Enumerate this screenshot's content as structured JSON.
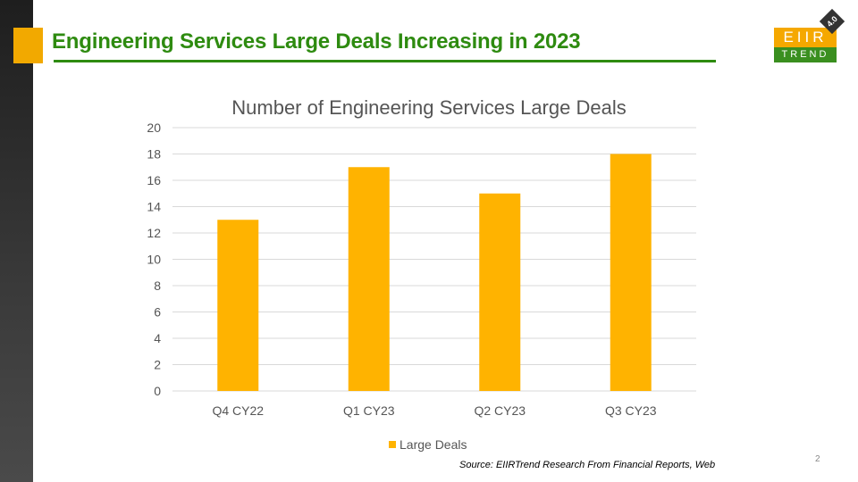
{
  "slide": {
    "title": "Engineering Services Large Deals Increasing in 2023",
    "source": "Source: EIIRTrend Research From Financial Reports, Web",
    "page_number": "2"
  },
  "logo": {
    "top_text": "EIIR",
    "bottom_text": "TREND",
    "version": "4.0"
  },
  "colors": {
    "accent": "#f2a900",
    "title_green": "#2e8b10",
    "bar": "#ffb300"
  },
  "chart_data": {
    "type": "bar",
    "title": "Number of Engineering Services Large Deals",
    "categories": [
      "Q4 CY22",
      "Q1 CY23",
      "Q2 CY23",
      "Q3 CY23"
    ],
    "series": [
      {
        "name": "Large Deals",
        "values": [
          13,
          17,
          15,
          18
        ]
      }
    ],
    "ylim": [
      0,
      20
    ],
    "yticks": [
      0,
      2,
      4,
      6,
      8,
      10,
      12,
      14,
      16,
      18,
      20
    ],
    "xlabel": "",
    "ylabel": "",
    "grid": true,
    "legend": "bottom"
  }
}
